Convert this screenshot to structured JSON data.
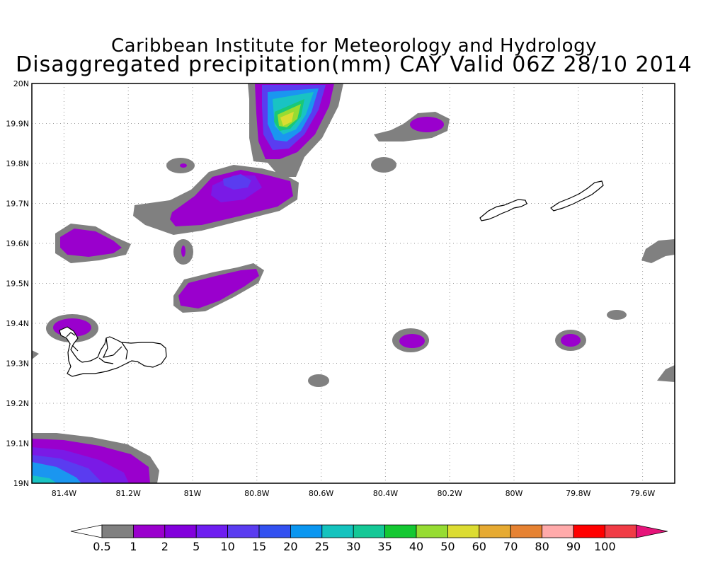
{
  "title": {
    "line1": "Caribbean Institute for Meteorology and Hydrology",
    "line2": "Disaggregated precipitation(mm) CAY Valid 06Z 28/10 2014"
  },
  "map": {
    "lon_range": [
      -81.5,
      -79.5
    ],
    "lat_range": [
      19.0,
      20.0
    ],
    "grid": "dotted",
    "x_ticks": [
      {
        "lon": -81.4,
        "label": "81.4W"
      },
      {
        "lon": -81.2,
        "label": "81.2W"
      },
      {
        "lon": -81.0,
        "label": "81W"
      },
      {
        "lon": -80.8,
        "label": "80.8W"
      },
      {
        "lon": -80.6,
        "label": "80.6W"
      },
      {
        "lon": -80.4,
        "label": "80.4W"
      },
      {
        "lon": -80.2,
        "label": "80.2W"
      },
      {
        "lon": -80.0,
        "label": "80W"
      },
      {
        "lon": -79.8,
        "label": "79.8W"
      },
      {
        "lon": -79.6,
        "label": "79.6W"
      }
    ],
    "y_ticks": [
      {
        "lat": 20.0,
        "label": "20N"
      },
      {
        "lat": 19.9,
        "label": "19.9N"
      },
      {
        "lat": 19.8,
        "label": "19.8N"
      },
      {
        "lat": 19.7,
        "label": "19.7N"
      },
      {
        "lat": 19.6,
        "label": "19.6N"
      },
      {
        "lat": 19.5,
        "label": "19.5N"
      },
      {
        "lat": 19.4,
        "label": "19.4N"
      },
      {
        "lat": 19.3,
        "label": "19.3N"
      },
      {
        "lat": 19.2,
        "label": "19.2N"
      },
      {
        "lat": 19.1,
        "label": "19.1N"
      },
      {
        "lat": 19.0,
        "label": "19N"
      }
    ],
    "colors": {
      "gray": "#808080",
      "purple1": "#9a00cd",
      "purple2": "#7a1ae6",
      "violet": "#5a3cf0",
      "blue": "#3a5af0",
      "skyblue": "#1a96f0",
      "teal": "#19c3c3",
      "green": "#19c878",
      "lime": "#96dc32",
      "yellow": "#dcdc32"
    },
    "islands": [
      "Grand Cayman",
      "Little Cayman",
      "Cayman Brac"
    ]
  },
  "colorbar": {
    "labels": [
      "0.5",
      "1",
      "2",
      "5",
      "10",
      "15",
      "20",
      "25",
      "30",
      "35",
      "40",
      "50",
      "60",
      "70",
      "80",
      "90",
      "100"
    ],
    "colors": [
      "#808080",
      "#9a00cd",
      "#8200dc",
      "#6e1ef0",
      "#5a3cf0",
      "#3250f0",
      "#0a96f0",
      "#14c3be",
      "#14c896",
      "#14c832",
      "#96dc32",
      "#dcdc32",
      "#e6aa32",
      "#e68232",
      "#ffaaaa",
      "#ff0000",
      "#f03c46"
    ],
    "low_arrow_color": "#ffffff",
    "high_arrow_color": "#e6147a"
  }
}
